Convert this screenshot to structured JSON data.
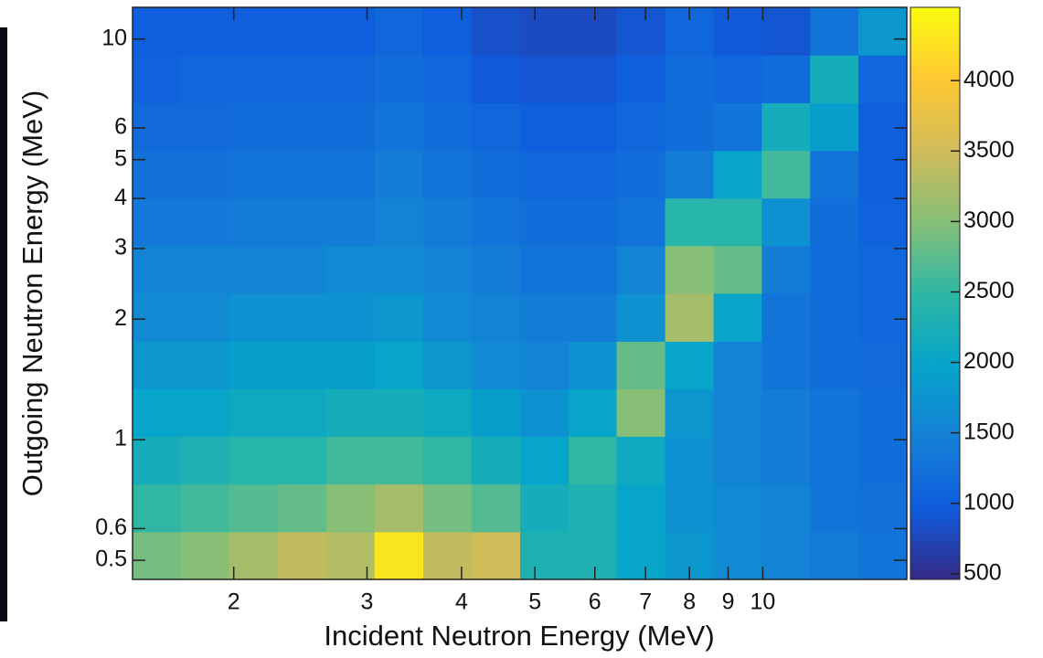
{
  "chart_data": {
    "type": "heatmap",
    "xlabel": "Incident Neutron Energy (MeV)",
    "ylabel": "Outgoing Neutron Energy (MeV)",
    "log_x": true,
    "log_y": true,
    "xlim": [
      1.47,
      15.5
    ],
    "ylim": [
      0.448,
      12.0
    ],
    "xticks": [
      2,
      3,
      4,
      5,
      6,
      7,
      8,
      9,
      10
    ],
    "yticks": [
      0.5,
      0.6,
      1,
      2,
      3,
      4,
      5,
      6,
      10
    ],
    "xbins": [
      1.47,
      1.7,
      1.97,
      2.29,
      2.65,
      3.07,
      3.56,
      4.12,
      4.78,
      5.54,
      6.41,
      7.43,
      8.61,
      9.97,
      11.55,
      13.38,
      15.5
    ],
    "ybins": [
      0.448,
      0.589,
      0.775,
      1.02,
      1.34,
      1.76,
      2.32,
      3.05,
      4.01,
      5.27,
      6.93,
      9.12,
      12.0
    ],
    "z": [
      [
        2900,
        3000,
        3200,
        3400,
        3300,
        4300,
        3400,
        3500,
        2300,
        2300,
        2000,
        1800,
        1600,
        1500,
        1400,
        1300
      ],
      [
        2500,
        2600,
        2700,
        2800,
        3000,
        3200,
        2900,
        2700,
        2200,
        2300,
        2000,
        1700,
        1600,
        1500,
        1300,
        1250
      ],
      [
        2200,
        2300,
        2400,
        2400,
        2600,
        2600,
        2500,
        2200,
        2000,
        2500,
        2100,
        1700,
        1500,
        1400,
        1300,
        1200
      ],
      [
        2000,
        2000,
        2100,
        2100,
        2200,
        2200,
        2100,
        1900,
        1700,
        2000,
        3000,
        1800,
        1500,
        1400,
        1300,
        1200
      ],
      [
        1800,
        1800,
        1900,
        1900,
        1900,
        2000,
        1800,
        1600,
        1500,
        1700,
        2800,
        2000,
        1500,
        1300,
        1200,
        1150
      ],
      [
        1600,
        1600,
        1700,
        1700,
        1700,
        1800,
        1600,
        1500,
        1400,
        1400,
        1700,
        3200,
        2000,
        1300,
        1200,
        1100
      ],
      [
        1500,
        1500,
        1500,
        1500,
        1600,
        1600,
        1500,
        1400,
        1300,
        1300,
        1500,
        3000,
        2800,
        1400,
        1200,
        1100
      ],
      [
        1350,
        1350,
        1400,
        1400,
        1400,
        1500,
        1400,
        1300,
        1200,
        1200,
        1300,
        2400,
        2400,
        1700,
        1200,
        1050
      ],
      [
        1250,
        1250,
        1300,
        1300,
        1300,
        1400,
        1300,
        1200,
        1100,
        1100,
        1200,
        1400,
        2000,
        2600,
        1300,
        1000
      ],
      [
        1150,
        1150,
        1200,
        1200,
        1200,
        1300,
        1200,
        1100,
        1000,
        1000,
        1100,
        1200,
        1300,
        2200,
        1900,
        1000
      ],
      [
        1050,
        1100,
        1100,
        1100,
        1100,
        1200,
        1100,
        950,
        900,
        900,
        1000,
        1200,
        1100,
        1200,
        2200,
        1100
      ],
      [
        1000,
        1000,
        1000,
        1000,
        1000,
        1100,
        1000,
        850,
        800,
        800,
        900,
        1100,
        950,
        900,
        1300,
        1800
      ]
    ],
    "colormap": "parula",
    "clim": [
      460,
      4520
    ],
    "cticks": [
      500,
      1000,
      1500,
      2000,
      2500,
      3000,
      3500,
      4000
    ]
  }
}
